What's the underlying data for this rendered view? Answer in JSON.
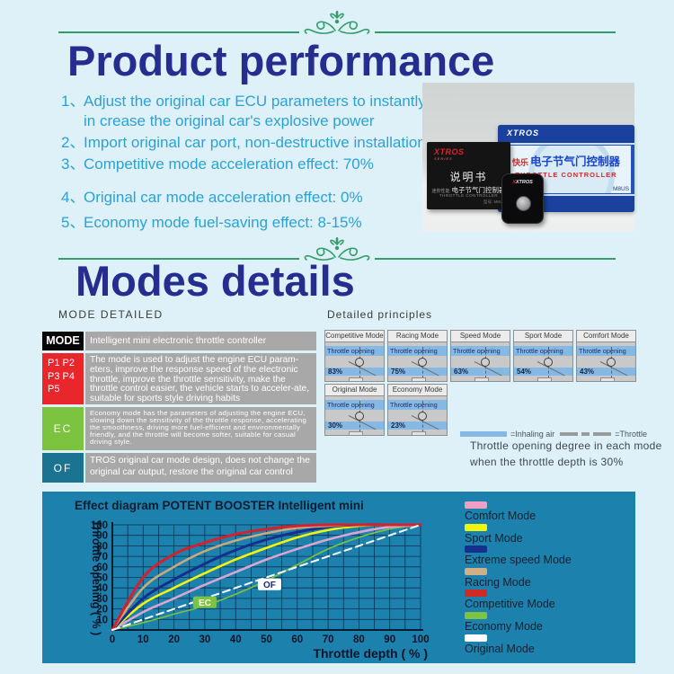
{
  "colors": {
    "page_bg": "#def0f8",
    "title_navy": "#252e8f",
    "list_cyan": "#2ba2d6",
    "ornament_green": "#2f9e68",
    "panel_teal": "#1d81ae",
    "table_desc_gray": "#a8a8a8"
  },
  "header": {
    "title": "Product performance"
  },
  "performance": {
    "items": [
      {
        "num": "1、",
        "text": "Adjust the original car ECU parameters to instantly in crease the original car's explosive power"
      },
      {
        "num": "2、",
        "text": "Import original car port, non-destructive installation;"
      },
      {
        "num": "3、",
        "text": "Competitive mode acceleration effect: 70%"
      },
      {
        "num": "4、",
        "text": "Original car mode acceleration effect: 0%"
      },
      {
        "num": "5、",
        "text": "Economy mode fuel-saving effect: 8-15%"
      }
    ]
  },
  "photo": {
    "brand": "XTROS",
    "box_cn_prefix": "快乐",
    "box_cn": "电子节气门控制器",
    "box_en": "THROTTLE CONTROLLER",
    "box_model": "M8US",
    "manual_brand": "XTROS",
    "manual_brand_sub": "SERIES",
    "manual_title": "说明书",
    "manual_cn_prefix": "迷你性能",
    "manual_cn": "电子节气门控制器",
    "manual_en": "THROTTLE CONTROLLER",
    "manual_model": "型号: M8US"
  },
  "modes": {
    "title": "Modes details",
    "table_label": "MODE DETAILED",
    "rows": [
      {
        "key": "MODE",
        "key_bg": "#050505",
        "desc": "Intelligent mini electronic throttle controller"
      },
      {
        "key": "P1  P2\nP3  P4\nP5",
        "key_bg": "#e8262b",
        "desc": "The mode is used to adjust the engine ECU param-eters, improve the response speed of the electronic throttle, improve the throttle sensitivity, make the throttle control easier, the vehicle starts to acceler-ate, suitable for sports style driving habits"
      },
      {
        "key": "EC",
        "key_bg": "#7cc340",
        "desc": "Economy mode has the parameters of adjusting the engine ECU, slowing down the sensitivity of the throttle response, accelerating the smoothness, driving more fuel-efficient and environmentally friendly, and the throttle will become softer, suitable for casual driving style."
      },
      {
        "key": "OF",
        "key_bg": "#1b7391",
        "desc": "TROS  original car mode design, does not change the original car output, restore the original car control"
      }
    ]
  },
  "principles": {
    "label": "Detailed principles",
    "opening_label": "Throttle opening",
    "boxes": [
      {
        "name": "Competitive Mode",
        "value": "83%"
      },
      {
        "name": "Racing Mode",
        "value": "75%"
      },
      {
        "name": "Speed Mode",
        "value": "63%"
      },
      {
        "name": "Sport Mode",
        "value": "54%"
      },
      {
        "name": "Comfort Mode",
        "value": "43%"
      },
      {
        "name": "Original Mode",
        "value": "30%"
      },
      {
        "name": "Economy Mode",
        "value": "23%"
      }
    ],
    "legend_inhaling": "=Inhaling air",
    "legend_throttle": "=Throttle",
    "caption1": "Throttle opening degree in each mode",
    "caption2": "when the throttle depth is 30%"
  },
  "chart_data": {
    "type": "line",
    "title": "Effect diagram  POTENT BOOSTER  Intelligent mini",
    "xlabel": "Throttle depth ( % )",
    "ylabel": "Throttle opening ( % )",
    "xlim": [
      0,
      100
    ],
    "ylim": [
      0,
      100
    ],
    "x_ticks": [
      0,
      10,
      20,
      30,
      40,
      50,
      60,
      70,
      80,
      90,
      100
    ],
    "y_ticks": [
      10,
      20,
      30,
      40,
      50,
      60,
      70,
      80,
      90,
      100
    ],
    "grid": {
      "x_step": 5,
      "y_step": 10
    },
    "x": [
      0,
      10,
      20,
      30,
      40,
      50,
      60,
      70,
      80,
      90,
      100
    ],
    "series": [
      {
        "name": "Economy Mode",
        "color": "#7cc340",
        "width": 1.6,
        "dash": null,
        "values": [
          0,
          7,
          15,
          23,
          34,
          47,
          62,
          77,
          88,
          96,
          100
        ]
      },
      {
        "name": "Comfort Mode",
        "color": "#d9a6d2",
        "width": 2.6,
        "dash": null,
        "values": [
          0,
          17,
          30,
          43,
          55,
          67,
          77,
          86,
          93,
          98,
          100
        ]
      },
      {
        "name": "Sport Mode",
        "color": "#f2f50a",
        "width": 2.6,
        "dash": null,
        "values": [
          0,
          25,
          40,
          54,
          67,
          78,
          88,
          95,
          99,
          100,
          100
        ]
      },
      {
        "name": "Extreme speed Mode",
        "color": "#162f8c",
        "width": 3,
        "dash": null,
        "values": [
          0,
          30,
          48,
          63,
          76,
          86,
          93,
          98,
          100,
          100,
          100
        ]
      },
      {
        "name": "Racing Mode",
        "color": "#c9a97e",
        "width": 2.6,
        "dash": null,
        "values": [
          0,
          40,
          60,
          75,
          85,
          92,
          97,
          99,
          100,
          100,
          100
        ]
      },
      {
        "name": "Competitive Mode",
        "color": "#d6202b",
        "width": 3,
        "dash": null,
        "values": [
          0,
          50,
          72,
          83,
          91,
          96,
          99,
          100,
          100,
          100,
          100
        ]
      },
      {
        "name": "Original Mode",
        "color": "#ffffff",
        "width": 2,
        "dash": "8 5",
        "values": [
          0,
          10,
          20,
          30,
          40,
          50,
          60,
          70,
          80,
          90,
          100
        ]
      }
    ],
    "annotations": [
      {
        "text": "EC",
        "x": 30,
        "y": 26,
        "bg": "#7cc340",
        "fg": "#ffffff"
      },
      {
        "text": "OF",
        "x": 51,
        "y": 43,
        "bg": "#ffffff",
        "fg": "#1b2a6b"
      }
    ],
    "legend_position": "right"
  },
  "chart_legend": [
    {
      "label": "Comfort Mode",
      "color": "#ef9fc4"
    },
    {
      "label": "Sport Mode",
      "color": "#f2f50a"
    },
    {
      "label": "Extreme speed Mode",
      "color": "#162f8c"
    },
    {
      "label": "Racing Mode",
      "color": "#d0b084"
    },
    {
      "label": "Competitive Mode",
      "color": "#cf2a24"
    },
    {
      "label": "Economy Mode",
      "color": "#7cc340"
    },
    {
      "label": "Original Mode",
      "color": "#ffffff"
    }
  ]
}
